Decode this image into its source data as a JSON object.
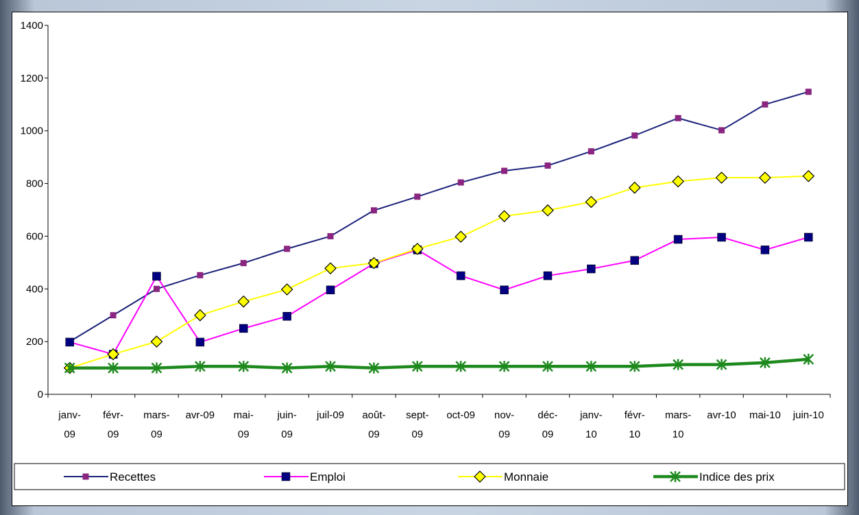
{
  "chart_data": {
    "type": "line",
    "categories": [
      [
        "janv-",
        "09"
      ],
      [
        "févr-",
        "09"
      ],
      [
        "mars-",
        "09"
      ],
      [
        "avr-09"
      ],
      [
        "mai-",
        "09"
      ],
      [
        "juin-",
        "09"
      ],
      [
        "juil-09"
      ],
      [
        "août-",
        "09"
      ],
      [
        "sept-",
        "09"
      ],
      [
        "oct-09"
      ],
      [
        "nov-",
        "09"
      ],
      [
        "déc-",
        "09"
      ],
      [
        "janv-",
        "10"
      ],
      [
        "févr-",
        "10"
      ],
      [
        "mars-",
        "10"
      ],
      [
        "avr-10"
      ],
      [
        "mai-10"
      ],
      [
        "juin-10"
      ]
    ],
    "ylim": [
      0,
      1400
    ],
    "yticks": [
      "0",
      "200",
      "400",
      "600",
      "800",
      "1000",
      "1200",
      "1400"
    ],
    "series": [
      {
        "name": "Recettes",
        "color": "#1a1f7a",
        "marker": "square-small",
        "marker_color": "#8a2580",
        "values": [
          200,
          300,
          400,
          452,
          498,
          552,
          600,
          698,
          750,
          804,
          848,
          868,
          922,
          982,
          1048,
          1002,
          1100,
          1148
        ]
      },
      {
        "name": "Emploi",
        "color": "#ff00ff",
        "marker": "square",
        "marker_color": "#000080",
        "values": [
          198,
          152,
          448,
          198,
          250,
          296,
          396,
          496,
          548,
          450,
          396,
          450,
          476,
          508,
          588,
          596,
          548,
          596
        ]
      },
      {
        "name": "Monnaie",
        "color": "#ffff00",
        "marker": "diamond",
        "marker_color": "#ffff00",
        "values": [
          100,
          152,
          200,
          300,
          352,
          398,
          478,
          498,
          552,
          598,
          676,
          698,
          730,
          784,
          808,
          822,
          822,
          828
        ]
      },
      {
        "name": "Indice des prix",
        "color": "#1e8a1e",
        "marker": "asterisk",
        "marker_color": "#1e8a1e",
        "values": [
          100,
          100,
          100,
          106,
          106,
          100,
          106,
          100,
          106,
          106,
          106,
          106,
          106,
          106,
          113,
          113,
          120,
          133
        ]
      }
    ]
  }
}
